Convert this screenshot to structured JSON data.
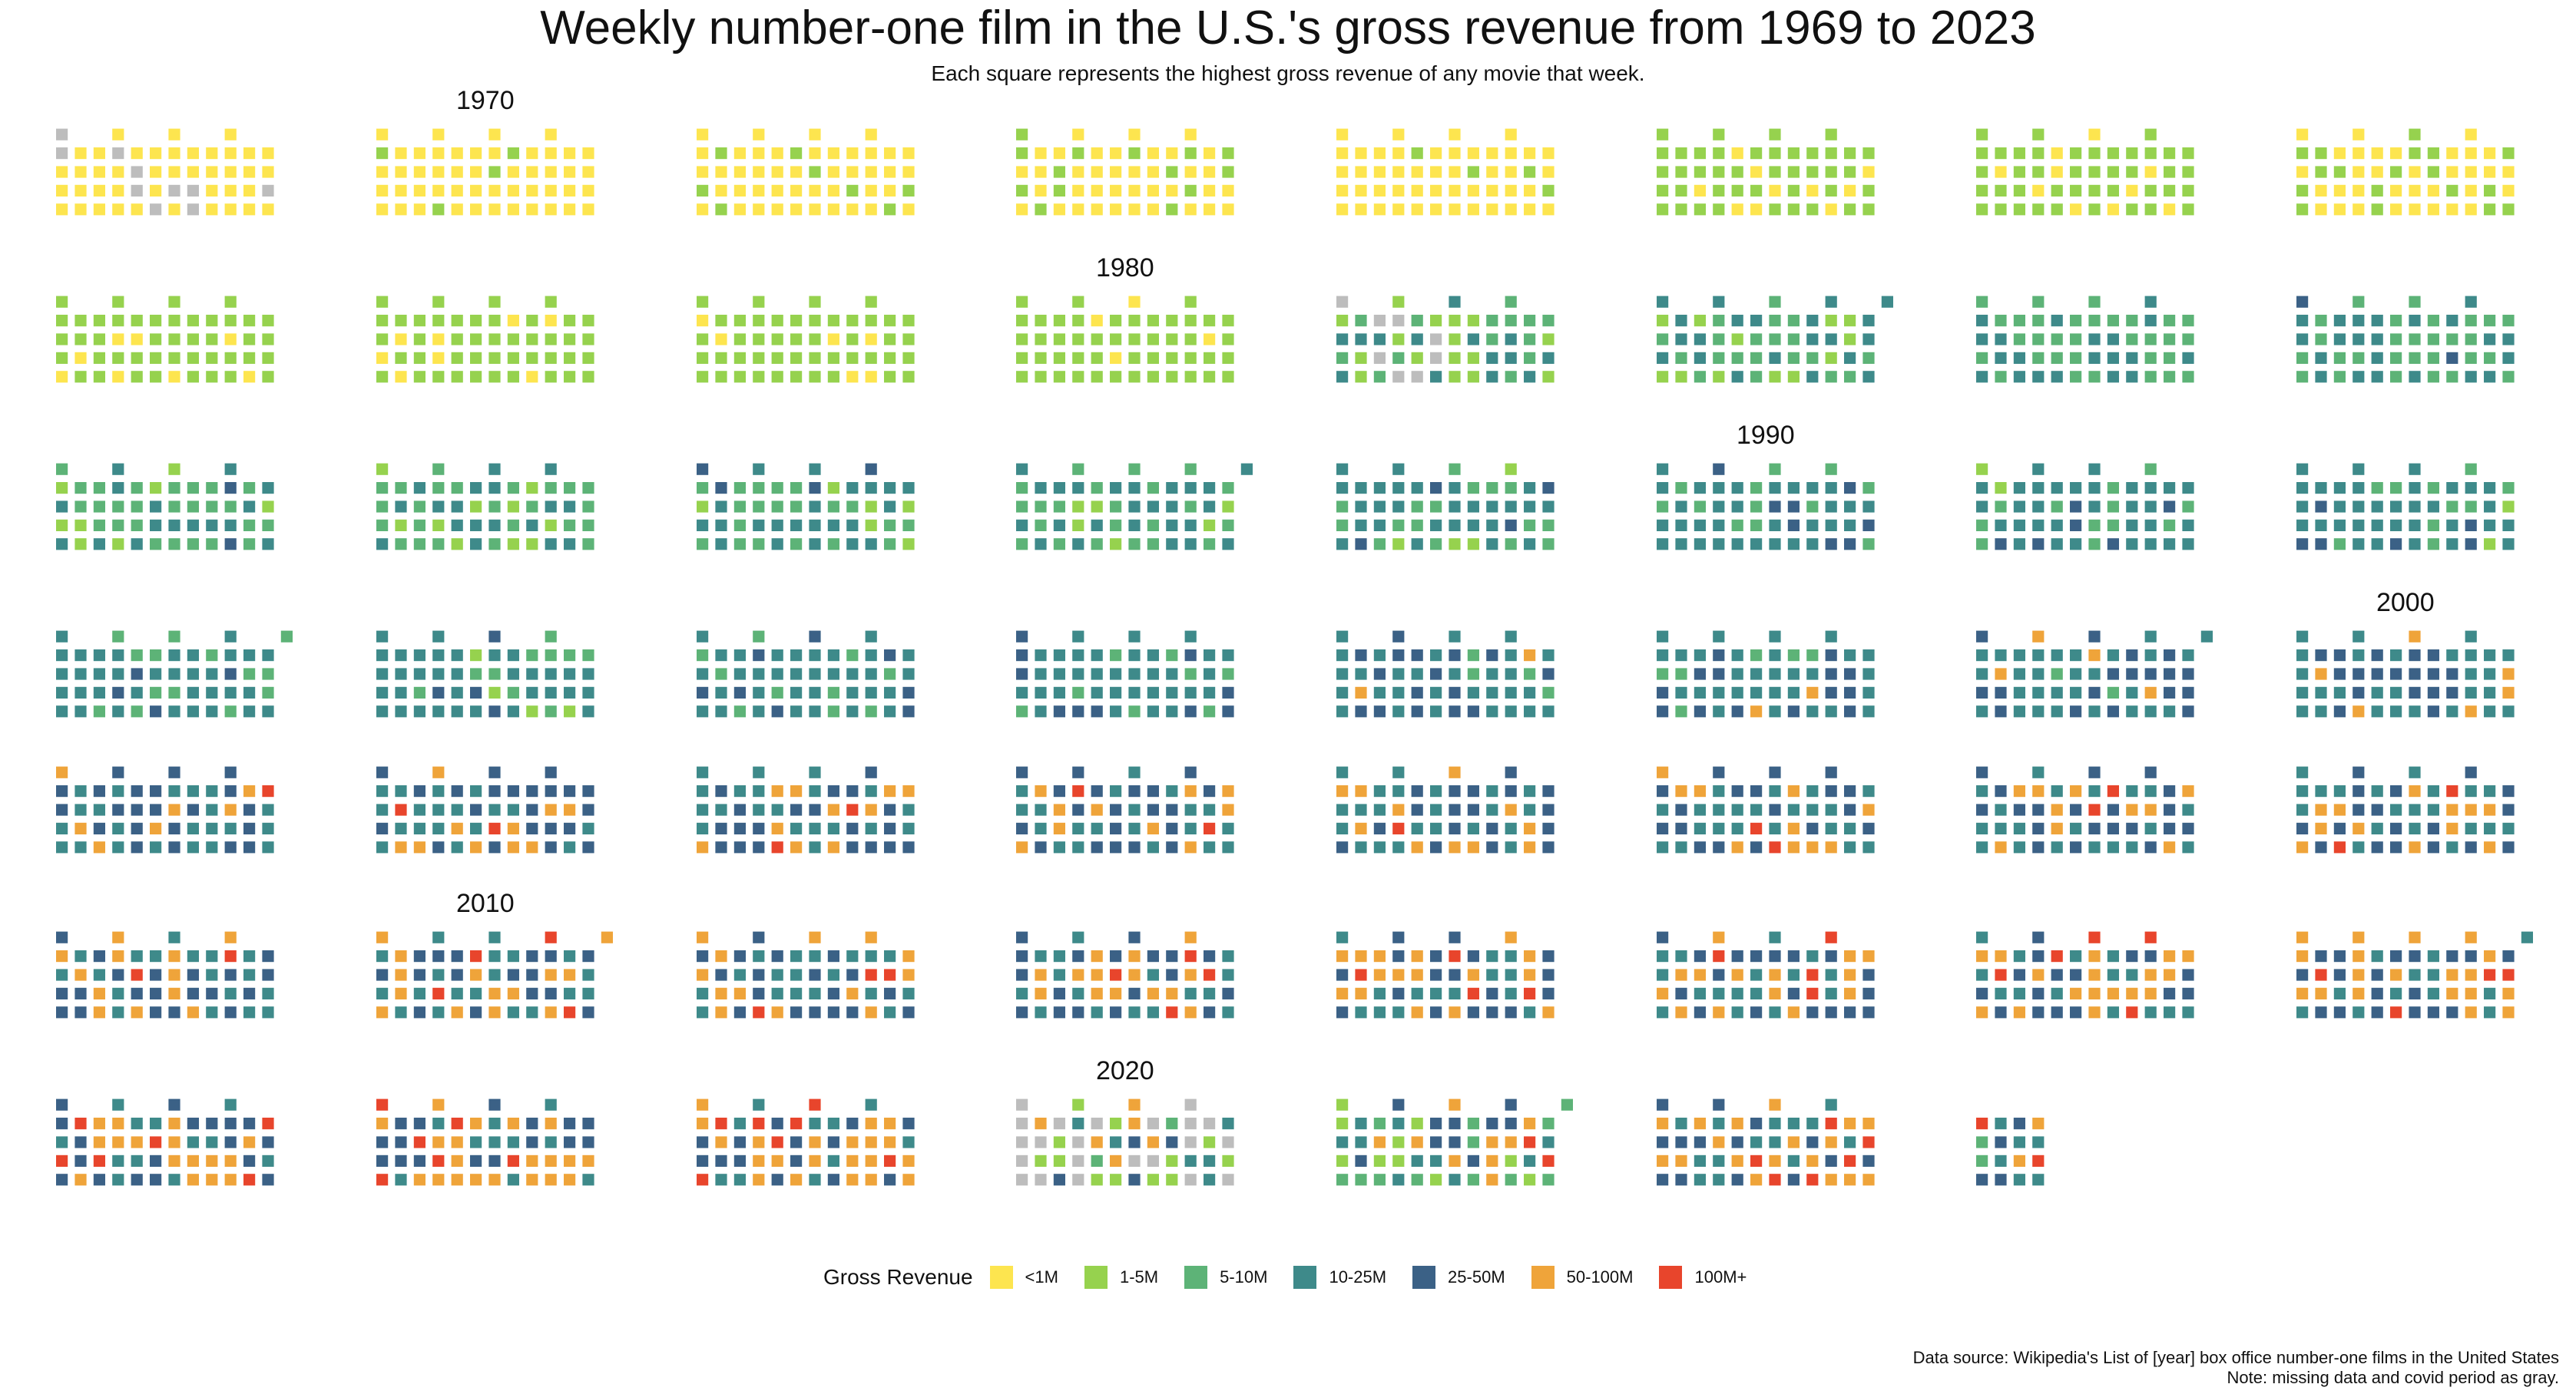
{
  "title": "Weekly number-one film in the U.S.'s gross revenue from 1969 to 2023",
  "subtitle": "Each square represents the highest gross revenue of any movie that week.",
  "legend": {
    "title": "Gross Revenue",
    "items": [
      {
        "label": "<1M",
        "color": "#FDE54F"
      },
      {
        "label": "1-5M",
        "color": "#96D24E"
      },
      {
        "label": "5-10M",
        "color": "#5DB377"
      },
      {
        "label": "10-25M",
        "color": "#3E8A8A"
      },
      {
        "label": "25-50M",
        "color": "#3B6186"
      },
      {
        "label": "50-100M",
        "color": "#EFA43A"
      },
      {
        "label": "100M+",
        "color": "#E8452C"
      }
    ],
    "missing_color": "#BDBDBD"
  },
  "footnote": {
    "line1": "Data source: Wikipedia's List of [year] box office number-one films in the United States",
    "line2": "Note: missing data and covid period as gray."
  },
  "chart_data": {
    "type": "waffle",
    "categories": [
      "missing",
      "<1M",
      "1-5M",
      "5-10M",
      "10-25M",
      "25-50M",
      "50-100M",
      "100M+"
    ],
    "decade_labels": [
      {
        "text": "1970",
        "year": 1970
      },
      {
        "text": "1980",
        "year": 1980
      },
      {
        "text": "1990",
        "year": 1990
      },
      {
        "text": "2000",
        "year": 2000
      },
      {
        "text": "2010",
        "year": 2010
      },
      {
        "text": "2020",
        "year": 2020
      }
    ],
    "years": [
      {
        "year": 1969,
        "weeks": 52,
        "counts": [
          10,
          42,
          0,
          0,
          0,
          0,
          0,
          0
        ]
      },
      {
        "year": 1970,
        "weeks": 52,
        "counts": [
          0,
          48,
          4,
          0,
          0,
          0,
          0,
          0
        ]
      },
      {
        "year": 1971,
        "weeks": 52,
        "counts": [
          0,
          44,
          8,
          0,
          0,
          0,
          0,
          0
        ]
      },
      {
        "year": 1972,
        "weeks": 52,
        "counts": [
          0,
          38,
          14,
          0,
          0,
          0,
          0,
          0
        ]
      },
      {
        "year": 1973,
        "weeks": 52,
        "counts": [
          0,
          48,
          4,
          0,
          0,
          0,
          0,
          0
        ]
      },
      {
        "year": 1974,
        "weeks": 52,
        "counts": [
          0,
          10,
          42,
          0,
          0,
          0,
          0,
          0
        ]
      },
      {
        "year": 1975,
        "weeks": 52,
        "counts": [
          0,
          10,
          42,
          0,
          0,
          0,
          0,
          0
        ]
      },
      {
        "year": 1976,
        "weeks": 52,
        "counts": [
          0,
          34,
          18,
          0,
          0,
          0,
          0,
          0
        ]
      },
      {
        "year": 1977,
        "weeks": 52,
        "counts": [
          0,
          8,
          44,
          0,
          0,
          0,
          0,
          0
        ]
      },
      {
        "year": 1978,
        "weeks": 52,
        "counts": [
          0,
          8,
          44,
          0,
          0,
          0,
          0,
          0
        ]
      },
      {
        "year": 1979,
        "weeks": 52,
        "counts": [
          0,
          6,
          46,
          0,
          0,
          0,
          0,
          0
        ]
      },
      {
        "year": 1980,
        "weeks": 52,
        "counts": [
          0,
          4,
          48,
          0,
          0,
          0,
          0,
          0
        ]
      },
      {
        "year": 1981,
        "weeks": 52,
        "counts": [
          8,
          0,
          16,
          14,
          14,
          0,
          0,
          0
        ]
      },
      {
        "year": 1982,
        "weeks": 53,
        "counts": [
          0,
          0,
          12,
          20,
          21,
          0,
          0,
          0
        ]
      },
      {
        "year": 1983,
        "weeks": 52,
        "counts": [
          0,
          0,
          0,
          32,
          20,
          0,
          0,
          0
        ]
      },
      {
        "year": 1984,
        "weeks": 52,
        "counts": [
          0,
          0,
          0,
          28,
          22,
          2,
          0,
          0
        ]
      },
      {
        "year": 1985,
        "weeks": 52,
        "counts": [
          0,
          0,
          8,
          26,
          16,
          2,
          0,
          0
        ]
      },
      {
        "year": 1986,
        "weeks": 52,
        "counts": [
          0,
          0,
          10,
          24,
          18,
          0,
          0,
          0
        ]
      },
      {
        "year": 1987,
        "weeks": 52,
        "counts": [
          0,
          0,
          6,
          20,
          22,
          4,
          0,
          0
        ]
      },
      {
        "year": 1988,
        "weeks": 53,
        "counts": [
          0,
          0,
          6,
          22,
          25,
          0,
          0,
          0
        ]
      },
      {
        "year": 1989,
        "weeks": 52,
        "counts": [
          0,
          0,
          4,
          16,
          28,
          4,
          0,
          0
        ]
      },
      {
        "year": 1990,
        "weeks": 52,
        "counts": [
          0,
          0,
          0,
          12,
          32,
          8,
          0,
          0
        ]
      },
      {
        "year": 1991,
        "weeks": 52,
        "counts": [
          0,
          0,
          2,
          12,
          32,
          6,
          0,
          0
        ]
      },
      {
        "year": 1992,
        "weeks": 52,
        "counts": [
          0,
          0,
          2,
          10,
          34,
          6,
          0,
          0
        ]
      },
      {
        "year": 1993,
        "weeks": 53,
        "counts": [
          0,
          0,
          0,
          14,
          35,
          4,
          0,
          0
        ]
      },
      {
        "year": 1994,
        "weeks": 52,
        "counts": [
          0,
          0,
          4,
          10,
          34,
          4,
          0,
          0
        ]
      },
      {
        "year": 1995,
        "weeks": 52,
        "counts": [
          0,
          0,
          0,
          10,
          34,
          8,
          0,
          0
        ]
      },
      {
        "year": 1996,
        "weeks": 52,
        "counts": [
          0,
          0,
          0,
          8,
          34,
          10,
          0,
          0
        ]
      },
      {
        "year": 1997,
        "weeks": 52,
        "counts": [
          0,
          0,
          0,
          4,
          30,
          16,
          2,
          0
        ]
      },
      {
        "year": 1998,
        "weeks": 52,
        "counts": [
          0,
          0,
          0,
          6,
          30,
          14,
          2,
          0
        ]
      },
      {
        "year": 1999,
        "weeks": 53,
        "counts": [
          0,
          0,
          0,
          2,
          29,
          18,
          4,
          0
        ]
      },
      {
        "year": 2000,
        "weeks": 52,
        "counts": [
          0,
          0,
          0,
          0,
          28,
          18,
          6,
          0
        ]
      },
      {
        "year": 2001,
        "weeks": 52,
        "counts": [
          0,
          0,
          0,
          0,
          22,
          22,
          7,
          1
        ]
      },
      {
        "year": 2002,
        "weeks": 52,
        "counts": [
          0,
          0,
          0,
          0,
          18,
          22,
          10,
          2
        ]
      },
      {
        "year": 2003,
        "weeks": 52,
        "counts": [
          0,
          0,
          0,
          0,
          20,
          20,
          10,
          2
        ]
      },
      {
        "year": 2004,
        "weeks": 52,
        "counts": [
          0,
          0,
          0,
          0,
          20,
          20,
          10,
          2
        ]
      },
      {
        "year": 2005,
        "weeks": 52,
        "counts": [
          0,
          0,
          0,
          0,
          22,
          18,
          11,
          1
        ]
      },
      {
        "year": 2006,
        "weeks": 52,
        "counts": [
          0,
          0,
          0,
          0,
          22,
          18,
          10,
          2
        ]
      },
      {
        "year": 2007,
        "weeks": 52,
        "counts": [
          0,
          0,
          0,
          0,
          20,
          20,
          10,
          2
        ]
      },
      {
        "year": 2008,
        "weeks": 52,
        "counts": [
          0,
          0,
          0,
          0,
          20,
          18,
          12,
          2
        ]
      },
      {
        "year": 2009,
        "weeks": 52,
        "counts": [
          0,
          0,
          0,
          0,
          18,
          20,
          12,
          2
        ]
      },
      {
        "year": 2010,
        "weeks": 53,
        "counts": [
          0,
          0,
          0,
          0,
          19,
          16,
          14,
          4
        ]
      },
      {
        "year": 2011,
        "weeks": 52,
        "counts": [
          0,
          0,
          0,
          0,
          18,
          18,
          13,
          3
        ]
      },
      {
        "year": 2012,
        "weeks": 52,
        "counts": [
          0,
          0,
          0,
          0,
          16,
          18,
          14,
          4
        ]
      },
      {
        "year": 2013,
        "weeks": 52,
        "counts": [
          0,
          0,
          0,
          0,
          14,
          18,
          16,
          4
        ]
      },
      {
        "year": 2014,
        "weeks": 52,
        "counts": [
          0,
          0,
          0,
          0,
          16,
          18,
          14,
          4
        ]
      },
      {
        "year": 2015,
        "weeks": 52,
        "counts": [
          0,
          0,
          0,
          0,
          14,
          16,
          17,
          5
        ]
      },
      {
        "year": 2016,
        "weeks": 53,
        "counts": [
          0,
          0,
          0,
          0,
          12,
          18,
          19,
          4
        ]
      },
      {
        "year": 2017,
        "weeks": 52,
        "counts": [
          0,
          0,
          0,
          0,
          12,
          18,
          16,
          6
        ]
      },
      {
        "year": 2018,
        "weeks": 52,
        "counts": [
          0,
          0,
          0,
          0,
          10,
          16,
          20,
          6
        ]
      },
      {
        "year": 2019,
        "weeks": 52,
        "counts": [
          0,
          0,
          0,
          0,
          10,
          14,
          21,
          7
        ]
      },
      {
        "year": 2020,
        "weeks": 52,
        "counts": [
          22,
          0,
          12,
          2,
          6,
          4,
          6,
          0
        ]
      },
      {
        "year": 2021,
        "weeks": 53,
        "counts": [
          0,
          0,
          10,
          12,
          10,
          10,
          9,
          2
        ]
      },
      {
        "year": 2022,
        "weeks": 52,
        "counts": [
          0,
          0,
          0,
          0,
          14,
          14,
          18,
          6
        ]
      },
      {
        "year": 2023,
        "weeks": 16,
        "counts": [
          0,
          0,
          0,
          2,
          6,
          4,
          2,
          2
        ]
      }
    ]
  }
}
